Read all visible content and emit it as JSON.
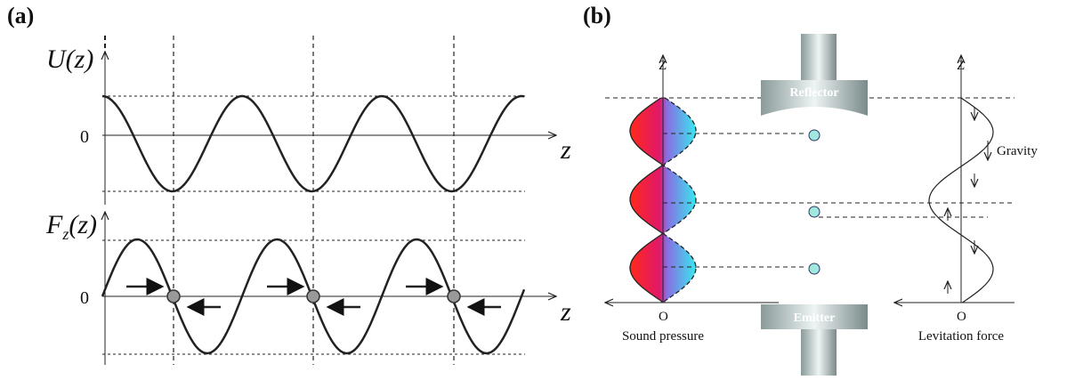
{
  "panel_a": {
    "label": "(a)",
    "top": {
      "y_label": "U(z)",
      "zero": "0",
      "x_label": "z"
    },
    "bottom": {
      "y_label": {
        "symbol": "F",
        "subscript": "z",
        "argument": "(z)"
      },
      "zero": "0",
      "x_label": "z"
    }
  },
  "panel_b": {
    "label": "(b)",
    "left_axis": "Z",
    "left_origin": "O",
    "left_caption": "Sound pressure",
    "reflector": "Reflector",
    "emitter": "Emitter",
    "right_axis": "Z",
    "right_origin": "O",
    "right_caption": "Levitation force",
    "gravity": "Gravity"
  }
}
